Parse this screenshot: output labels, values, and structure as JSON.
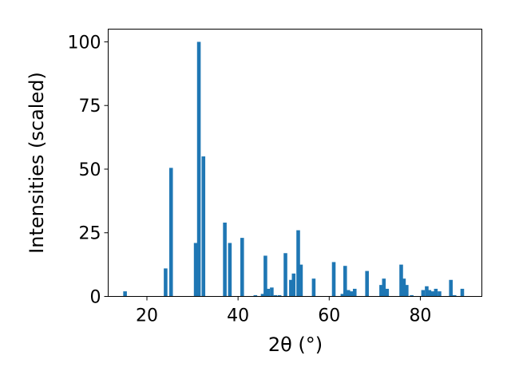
{
  "chart_data": {
    "type": "bar",
    "xlabel": "2θ (°)",
    "ylabel": "Intensities (scaled)",
    "xlim": [
      11.5,
      93.5
    ],
    "ylim": [
      0,
      105
    ],
    "xticks": [
      20,
      40,
      60,
      80
    ],
    "yticks": [
      0,
      25,
      50,
      75,
      100
    ],
    "bar_width": 0.8,
    "grid": false,
    "bar_color": "#1f77b4",
    "series": [
      {
        "x": [
          15.2,
          24.1,
          25.3,
          30.7,
          31.4,
          32.4,
          37.1,
          38.2,
          40.9,
          43.8,
          45.4,
          46.0,
          46.6,
          47.4,
          48.2,
          49.1,
          50.4,
          51.6,
          52.2,
          53.2,
          53.8,
          56.6,
          61.0,
          62.9,
          63.5,
          64.2,
          64.9,
          65.6,
          68.3,
          71.4,
          72.0,
          72.7,
          75.8,
          76.4,
          77.0,
          78.1,
          80.6,
          81.4,
          82.0,
          82.7,
          83.4,
          84.2,
          86.7,
          87.5,
          89.2
        ],
        "y": [
          2,
          11,
          50.5,
          21,
          100,
          55,
          29,
          21,
          23,
          0.5,
          1,
          16,
          3,
          3.5,
          0.5,
          0.5,
          17,
          6.5,
          9,
          26,
          12.5,
          7,
          13.5,
          1,
          12,
          2.5,
          2,
          3,
          10,
          4.5,
          7,
          3,
          12.5,
          7,
          4.5,
          0.5,
          2.5,
          4,
          2.5,
          2,
          3,
          2,
          6.5,
          0.5,
          3
        ]
      }
    ]
  }
}
